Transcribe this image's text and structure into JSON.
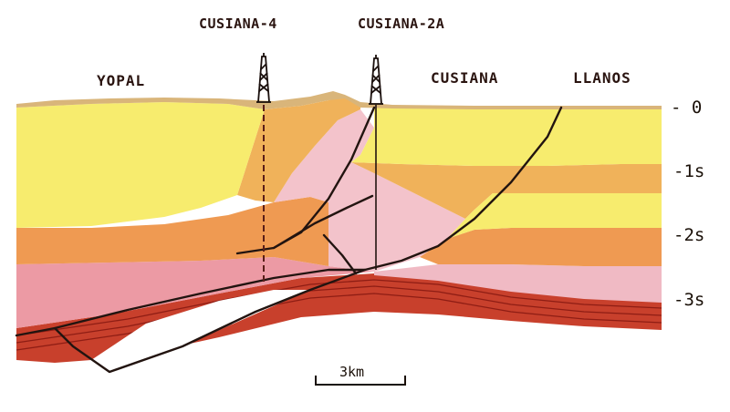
{
  "title": "",
  "wells": [
    {
      "name": "CUSIANA-4"
    },
    {
      "name": "CUSIANA-2A"
    }
  ],
  "locations": [
    "YOPAL",
    "CUSIANA",
    "LLANOS"
  ],
  "depth_axis": {
    "unit": "s",
    "ticks": [
      "- 0",
      "-1s",
      "-2s",
      "-3s"
    ]
  },
  "scale_bar": {
    "label": "3km"
  },
  "colors": {
    "upper_yellow": "#f7ec6e",
    "upper_orange": "#f0b25a",
    "pink": "#f2c0c8",
    "deep_pink": "#e88a96",
    "red": "#d4442e",
    "dark_red": "#b02a1e",
    "fault": "#221410",
    "sky": "#ffffff"
  }
}
